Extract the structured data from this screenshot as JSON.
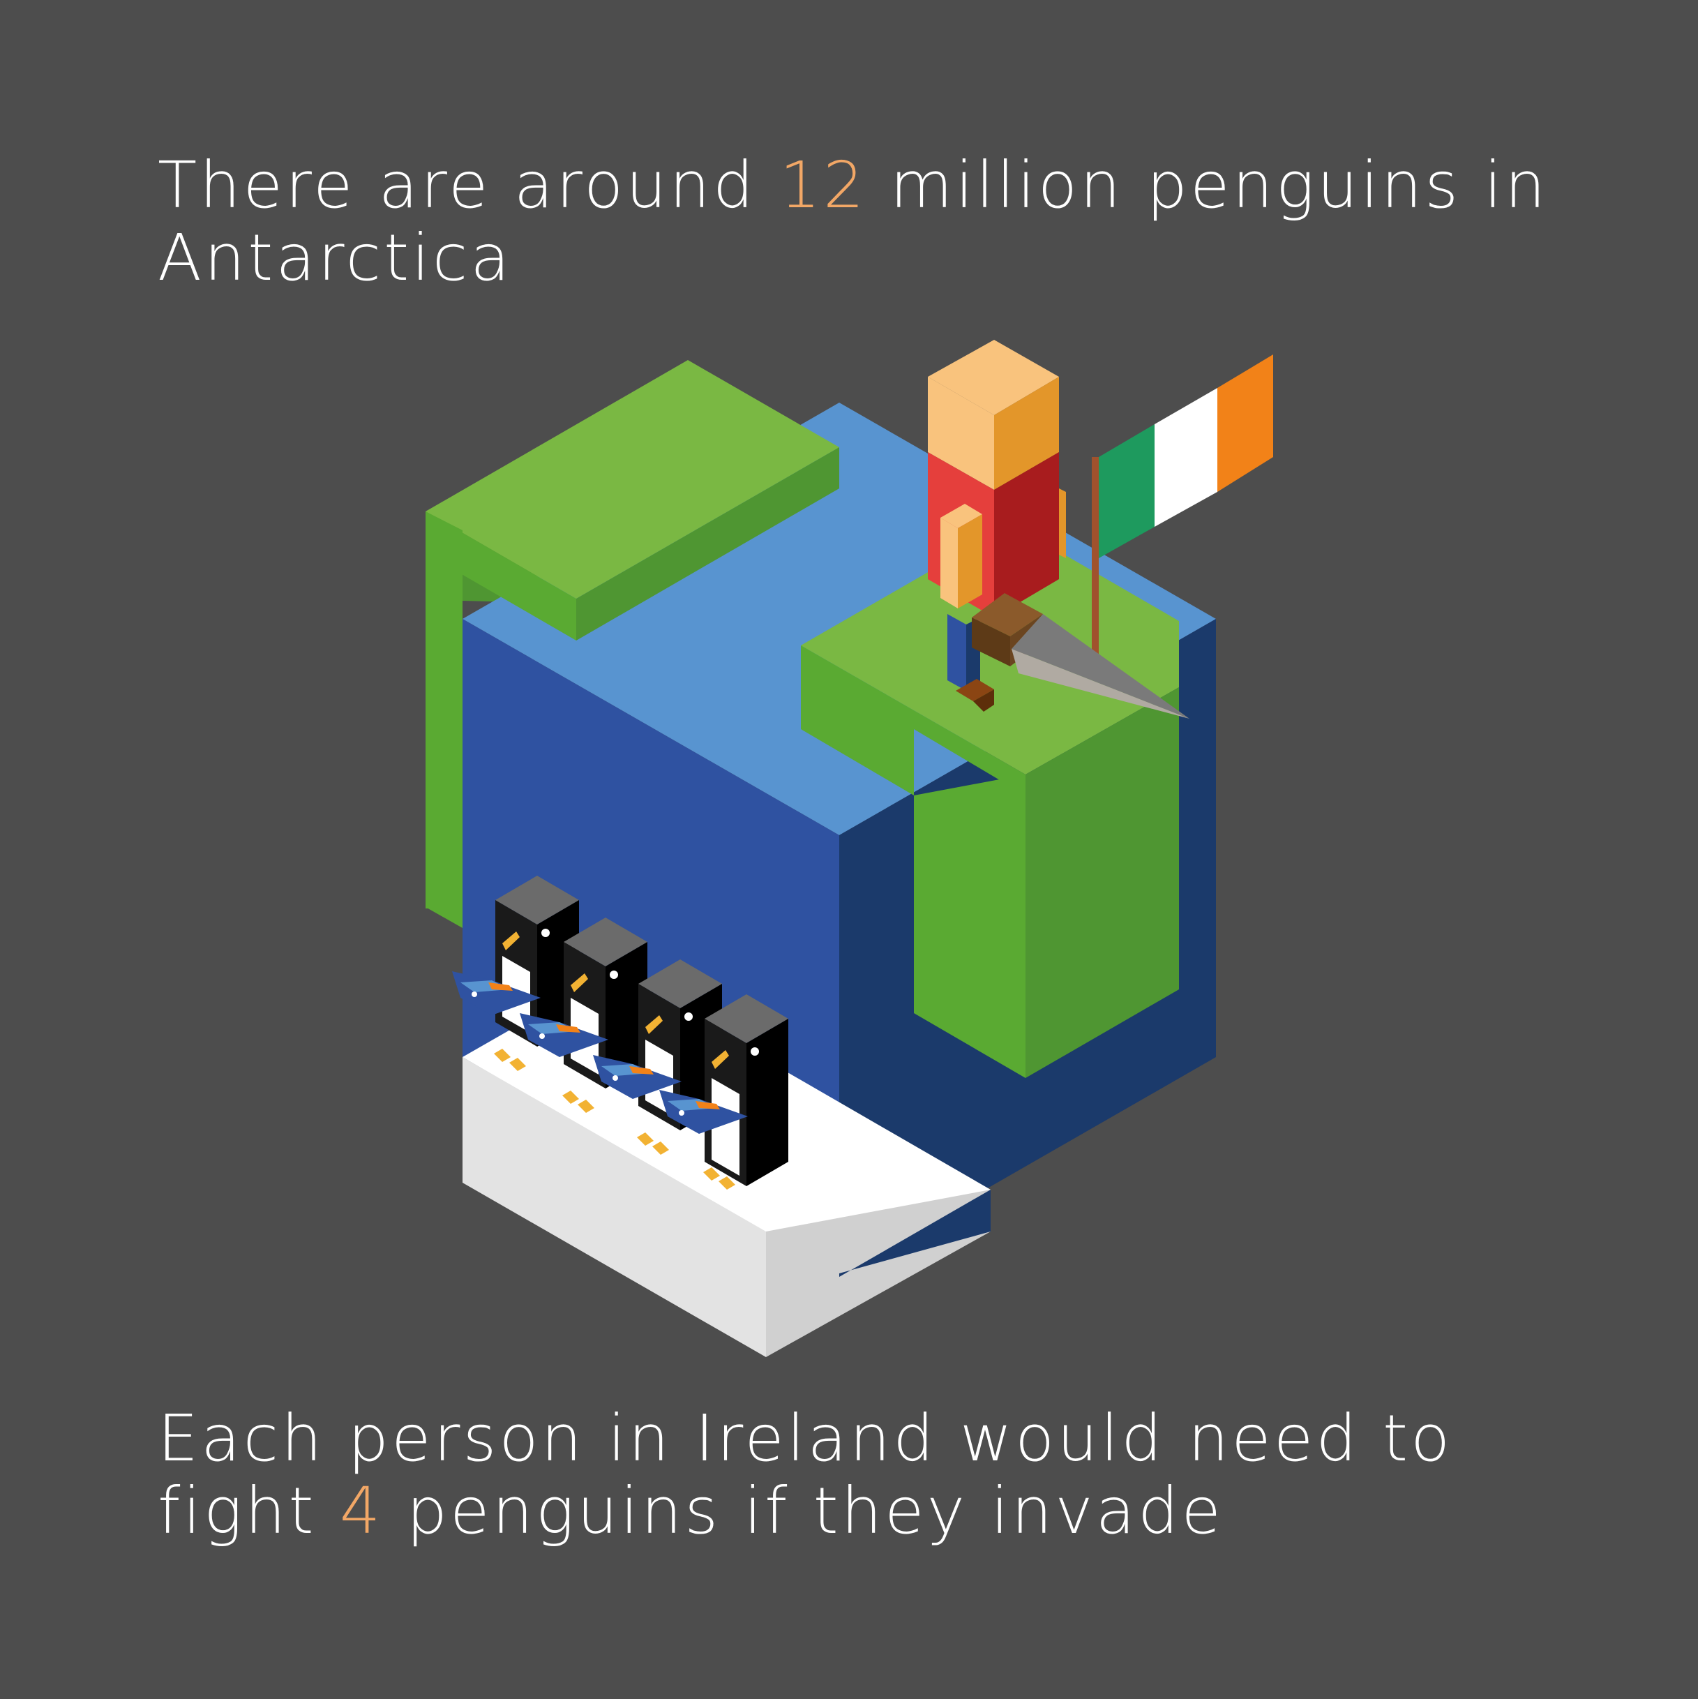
{
  "headline_top": {
    "prefix": "There are around ",
    "number": "12",
    "suffix": " million penguins in Antarctica"
  },
  "headline_bottom": {
    "prefix": "Each person in Ireland would need to fight ",
    "number": "4",
    "suffix": " penguins if they invade"
  },
  "colors": {
    "background": "#4d4d4d",
    "accent": "#f2a766",
    "grass_top": "#7ab843",
    "grass_left": "#5aaa32",
    "grass_right": "#4f9632",
    "cube_top": "#5894d0",
    "cube_left": "#2f52a1",
    "cube_right": "#1b3a6b",
    "ice_top": "#ffffff",
    "ice_left": "#e3e3e3",
    "ice_right": "#d0d0d0",
    "flag_green": "#1e9a5e",
    "flag_white": "#ffffff",
    "flag_orange": "#f28218"
  },
  "icons": [
    "ireland-flag-icon",
    "soldier-icon",
    "penguin-icon",
    "fish-icon",
    "spear-icon"
  ]
}
